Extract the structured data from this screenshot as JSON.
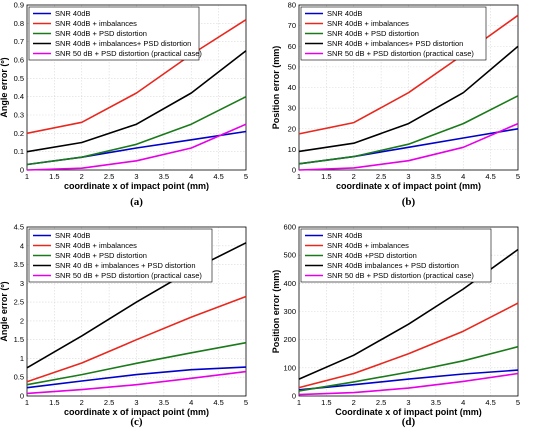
{
  "colors": {
    "blue": "#0000cc",
    "red": "#e8281e",
    "green": "#1a7a1a",
    "black": "#000000",
    "magenta": "#e600e6"
  },
  "chart_data": [
    {
      "type": "line",
      "panel_label": "(a)",
      "xlabel": "coordinate x of impact point (mm)",
      "ylabel": "Angle error (º)",
      "xlim": [
        1,
        5
      ],
      "ylim": [
        0,
        0.9
      ],
      "xticks": [
        "1",
        "1.5",
        "2",
        "2.5",
        "3",
        "3.5",
        "4",
        "4.5",
        "5"
      ],
      "yticks": [
        "0",
        "0.1",
        "0.2",
        "0.3",
        "0.4",
        "0.5",
        "0.6",
        "0.7",
        "0.8",
        "0.9"
      ],
      "grid": true,
      "legend": "top-left",
      "x": [
        1,
        2,
        3,
        4,
        5
      ],
      "series": [
        {
          "name": "SNR 40dB",
          "color": "blue",
          "values": [
            0.03,
            0.07,
            0.12,
            0.165,
            0.21
          ]
        },
        {
          "name": "SNR 40dB + imbalances",
          "color": "red",
          "values": [
            0.2,
            0.26,
            0.42,
            0.63,
            0.82
          ]
        },
        {
          "name": "SNR 40dB + PSD distortion",
          "color": "green",
          "values": [
            0.03,
            0.07,
            0.14,
            0.25,
            0.4
          ]
        },
        {
          "name": "SNR 40dB + imbalances+ PSD distortion",
          "color": "black",
          "values": [
            0.1,
            0.15,
            0.25,
            0.42,
            0.65
          ]
        },
        {
          "name": "SNR 50 dB + PSD distortion (practical case)",
          "color": "magenta",
          "values": [
            0.0,
            0.01,
            0.05,
            0.12,
            0.25
          ]
        }
      ]
    },
    {
      "type": "line",
      "panel_label": "(b)",
      "xlabel": "coordinate x of impact point (mm)",
      "ylabel": "Position error (mm)",
      "xlim": [
        1,
        5
      ],
      "ylim": [
        0,
        80
      ],
      "xticks": [
        "1",
        "1.5",
        "2",
        "2.5",
        "3",
        "3.5",
        "4",
        "4.5",
        "5"
      ],
      "yticks": [
        "0",
        "10",
        "20",
        "30",
        "40",
        "50",
        "60",
        "70",
        "80"
      ],
      "grid": true,
      "legend": "top-left",
      "x": [
        1,
        2,
        3,
        4,
        5
      ],
      "series": [
        {
          "name": "SNR 40dB",
          "color": "blue",
          "values": [
            3,
            6.5,
            11,
            15.5,
            20
          ]
        },
        {
          "name": "SNR 40dB + imbalances",
          "color": "red",
          "values": [
            17.5,
            23,
            37.5,
            56,
            75
          ]
        },
        {
          "name": "SNR 40dB + PSD distortion",
          "color": "green",
          "values": [
            3,
            6.5,
            12.5,
            22.5,
            36
          ]
        },
        {
          "name": "SNR 40dB + imbalances+ PSD distortion",
          "color": "black",
          "values": [
            9,
            13,
            22.5,
            37.5,
            60
          ]
        },
        {
          "name": "SNR 50 dB + PSD distortion (practical case)",
          "color": "magenta",
          "values": [
            0,
            1,
            4.5,
            11,
            22.5
          ]
        }
      ]
    },
    {
      "type": "line",
      "panel_label": "(c)",
      "xlabel": "coordinate x of impact point (mm)",
      "ylabel": "Angle error (º)",
      "xlim": [
        1,
        5
      ],
      "ylim": [
        0,
        4.5
      ],
      "xticks": [
        "1",
        "1.5",
        "2",
        "2.5",
        "3",
        "3.5",
        "4",
        "4.5",
        "5"
      ],
      "yticks": [
        "0",
        "0.5",
        "1",
        "1.5",
        "2",
        "2.5",
        "3",
        "3.5",
        "4",
        "4.5"
      ],
      "grid": true,
      "legend": "top-left",
      "x": [
        1,
        2,
        3,
        4,
        5
      ],
      "series": [
        {
          "name": "SNR 40dB",
          "color": "blue",
          "values": [
            0.22,
            0.4,
            0.57,
            0.7,
            0.77
          ]
        },
        {
          "name": "SNR 40dB + imbalances",
          "color": "red",
          "values": [
            0.38,
            0.88,
            1.5,
            2.1,
            2.65
          ]
        },
        {
          "name": "SNR 40dB + PSD distortion",
          "color": "green",
          "values": [
            0.3,
            0.57,
            0.87,
            1.15,
            1.42
          ]
        },
        {
          "name": "SNR 40 dB + imbalances + PSD distortion",
          "color": "black",
          "values": [
            0.75,
            1.6,
            2.5,
            3.35,
            4.08
          ]
        },
        {
          "name": "SNR 50 dB + PSD distortion (practical case)",
          "color": "magenta",
          "values": [
            0.07,
            0.17,
            0.3,
            0.47,
            0.65
          ]
        }
      ]
    },
    {
      "type": "line",
      "panel_label": "(d)",
      "xlabel": "Coordinate x of impact point (mm)",
      "ylabel": "Position error (mm)",
      "xlim": [
        1,
        5
      ],
      "ylim": [
        0,
        600
      ],
      "xticks": [
        "1",
        "1.5",
        "2",
        "2.5",
        "3",
        "3.5",
        "4",
        "4.5",
        "5"
      ],
      "yticks": [
        "0",
        "100",
        "200",
        "300",
        "400",
        "500",
        "600"
      ],
      "grid": true,
      "legend": "top-left",
      "x": [
        1,
        2,
        3,
        4,
        5
      ],
      "series": [
        {
          "name": "SNR 40dB",
          "color": "blue",
          "values": [
            22,
            40,
            60,
            78,
            92
          ]
        },
        {
          "name": "SNR 40dB + imbalances",
          "color": "red",
          "values": [
            30,
            80,
            150,
            230,
            330
          ]
        },
        {
          "name": "SNR 40dB +PSD distortion",
          "color": "green",
          "values": [
            18,
            50,
            85,
            125,
            175
          ]
        },
        {
          "name": "SNR 40dB imbalances + PSD distortion",
          "color": "black",
          "values": [
            60,
            145,
            255,
            380,
            520
          ]
        },
        {
          "name": "SNR 50 dB + PSD distortion (practical case)",
          "color": "magenta",
          "values": [
            5,
            12,
            28,
            52,
            80
          ]
        }
      ]
    }
  ]
}
